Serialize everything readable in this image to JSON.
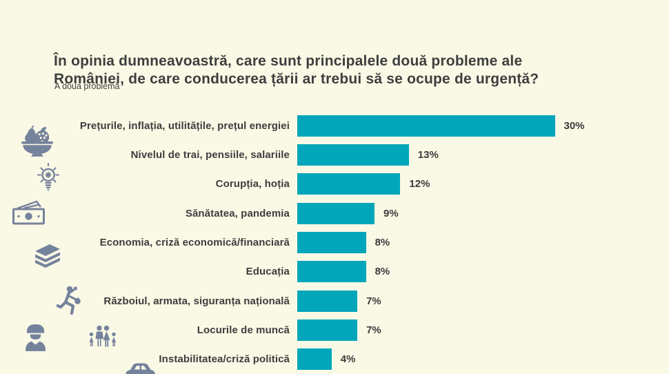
{
  "theme": {
    "background": "#FAF9E6",
    "icon_color": "#75829C",
    "bar_color": "#02A6BA",
    "text_color": "#3E3E3E"
  },
  "header": {
    "title_line1": "În opinia dumneavoastră, care sunt principalele două probleme ale",
    "title_line2": "României, de care conducerea țării ar trebui să se ocupe de urgență?",
    "subtitle": "A doua problemă"
  },
  "chart_data": {
    "type": "bar",
    "orientation": "horizontal",
    "title": "În opinia dumneavoastră, care sunt principalele două probleme ale României, de care conducerea țării ar trebui să se ocupe de urgență?",
    "subtitle": "A doua problemă",
    "categories": [
      "Prețurile, inflația, utilitățile, prețul energiei",
      "Nivelul de trai, pensiile, salariile",
      "Corupția, hoția",
      "Sănătatea, pandemia",
      "Economia, criză economică/financiară",
      "Educația",
      "Războiul, armata, siguranța națională",
      "Locurile de muncă",
      "Instabilitatea/criză politică"
    ],
    "values": [
      30,
      13,
      12,
      9,
      8,
      8,
      7,
      7,
      4
    ],
    "value_labels": [
      "30%",
      "13%",
      "12%",
      "9%",
      "8%",
      "8%",
      "7%",
      "7%",
      "4%"
    ],
    "unit": "%",
    "xlim": [
      0,
      33
    ],
    "grid": false,
    "legend": false,
    "bar_color": "#02A6BA",
    "value_label_position": "right-of-bar"
  },
  "icons": [
    {
      "name": "fruit-bowl"
    },
    {
      "name": "idea-lightbulb"
    },
    {
      "name": "money"
    },
    {
      "name": "books"
    },
    {
      "name": "running-person"
    },
    {
      "name": "soldier"
    },
    {
      "name": "family"
    },
    {
      "name": "car"
    }
  ]
}
